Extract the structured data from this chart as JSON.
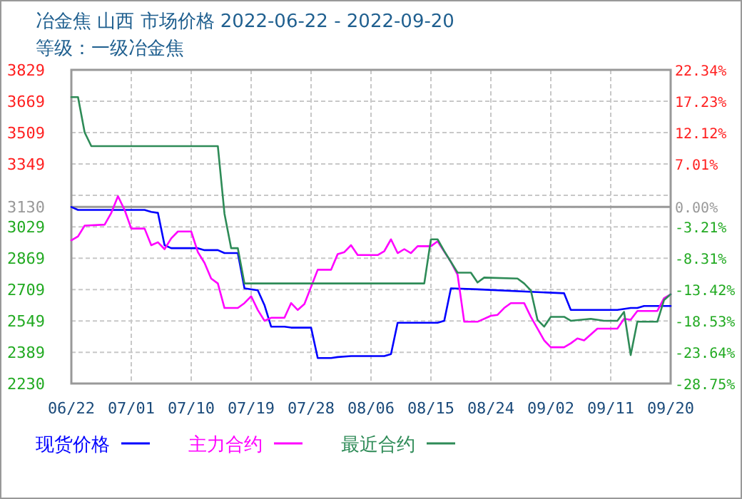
{
  "chart_data": {
    "type": "line",
    "title": "冶金焦 山西 市场价格 2022-06-22 - 2022-09-20",
    "subtitle": "等级：一级冶金焦",
    "xlim": [
      "2022-06-22",
      "2022-09-20"
    ],
    "xticks": [
      {
        "value": "2022-06-22",
        "label": "06/22"
      },
      {
        "value": "2022-07-01",
        "label": "07/01"
      },
      {
        "value": "2022-07-10",
        "label": "07/10"
      },
      {
        "value": "2022-07-19",
        "label": "07/19"
      },
      {
        "value": "2022-07-28",
        "label": "07/28"
      },
      {
        "value": "2022-08-06",
        "label": "08/06"
      },
      {
        "value": "2022-08-15",
        "label": "08/15"
      },
      {
        "value": "2022-08-24",
        "label": "08/24"
      },
      {
        "value": "2022-09-02",
        "label": "09/02"
      },
      {
        "value": "2022-09-11",
        "label": "09/11"
      },
      {
        "value": "2022-09-20",
        "label": "09/20"
      }
    ],
    "ylim": [
      2230,
      3829
    ],
    "yticks": [
      3829,
      3669,
      3509,
      3349,
      {
        "value": 3189,
        "label": null
      },
      3130,
      3029,
      2869,
      2709,
      2549,
      2389,
      2230
    ],
    "y2lim": [
      -28.75,
      22.34
    ],
    "y2ticks": [
      {
        "value": 22.34,
        "label": "22.34%"
      },
      {
        "value": 17.23,
        "label": "17.23%"
      },
      {
        "value": 12.12,
        "label": "12.12%"
      },
      {
        "value": 7.01,
        "label": "7.01%"
      },
      {
        "value": 0,
        "label": "0.00%"
      },
      {
        "value": -3.21,
        "label": "-3.21%"
      },
      {
        "value": -8.31,
        "label": "-8.31%"
      },
      {
        "value": -13.42,
        "label": "-13.42%"
      },
      {
        "value": -18.53,
        "label": "-18.53%"
      },
      {
        "value": -23.64,
        "label": "-23.64%"
      },
      {
        "value": -28.75,
        "label": "-28.75%"
      }
    ],
    "ref_lines": [
      {
        "axis": "y",
        "value": 3130,
        "color": "#999999"
      }
    ],
    "grid": true,
    "legend": "bottom",
    "series": [
      {
        "name": "现货价格",
        "color": "#0000ff",
        "x": [
          "2022-06-22",
          "2022-06-23",
          "2022-07-03",
          "2022-07-04",
          "2022-07-05",
          "2022-07-06",
          "2022-07-07",
          "2022-07-11",
          "2022-07-12",
          "2022-07-14",
          "2022-07-15",
          "2022-07-17",
          "2022-07-18",
          "2022-07-20",
          "2022-07-21",
          "2022-07-22",
          "2022-07-24",
          "2022-07-25",
          "2022-07-28",
          "2022-07-29",
          "2022-07-31",
          "2022-08-01",
          "2022-08-03",
          "2022-08-08",
          "2022-08-09",
          "2022-08-10",
          "2022-08-16",
          "2022-08-17",
          "2022-08-18",
          "2022-08-22",
          "2022-09-04",
          "2022-09-05",
          "2022-09-12",
          "2022-09-14",
          "2022-09-15",
          "2022-09-16",
          "2022-09-20"
        ],
        "values": [
          3130,
          3115,
          3115,
          3105,
          3100,
          2935,
          2920,
          2920,
          2910,
          2910,
          2895,
          2895,
          2715,
          2705,
          2630,
          2520,
          2520,
          2515,
          2515,
          2360,
          2360,
          2365,
          2370,
          2370,
          2380,
          2540,
          2540,
          2550,
          2715,
          2710,
          2690,
          2605,
          2605,
          2615,
          2615,
          2625,
          2625
        ]
      },
      {
        "name": "主力合约",
        "color": "#ff00ff",
        "x": [
          "2022-06-22",
          "2022-06-23",
          "2022-06-24",
          "2022-06-27",
          "2022-06-28",
          "2022-06-29",
          "2022-06-30",
          "2022-07-01",
          "2022-07-03",
          "2022-07-04",
          "2022-07-05",
          "2022-07-06",
          "2022-07-07",
          "2022-07-08",
          "2022-07-10",
          "2022-07-11",
          "2022-07-12",
          "2022-07-13",
          "2022-07-14",
          "2022-07-15",
          "2022-07-17",
          "2022-07-18",
          "2022-07-19",
          "2022-07-20",
          "2022-07-21",
          "2022-07-22",
          "2022-07-24",
          "2022-07-25",
          "2022-07-26",
          "2022-07-27",
          "2022-07-29",
          "2022-07-31",
          "2022-08-01",
          "2022-08-02",
          "2022-08-03",
          "2022-08-04",
          "2022-08-07",
          "2022-08-08",
          "2022-08-09",
          "2022-08-10",
          "2022-08-11",
          "2022-08-12",
          "2022-08-13",
          "2022-08-15",
          "2022-08-16",
          "2022-08-18",
          "2022-08-19",
          "2022-08-20",
          "2022-08-22",
          "2022-08-24",
          "2022-08-25",
          "2022-08-26",
          "2022-08-27",
          "2022-08-29",
          "2022-08-30",
          "2022-09-01",
          "2022-09-02",
          "2022-09-04",
          "2022-09-05",
          "2022-09-06",
          "2022-09-07",
          "2022-09-09",
          "2022-09-12",
          "2022-09-13",
          "2022-09-14",
          "2022-09-15",
          "2022-09-18",
          "2022-09-19",
          "2022-09-20"
        ],
        "values": [
          2960,
          2980,
          3035,
          3040,
          3100,
          3185,
          3115,
          3020,
          3020,
          2935,
          2950,
          2915,
          2970,
          3005,
          3005,
          2900,
          2845,
          2765,
          2740,
          2615,
          2615,
          2640,
          2675,
          2605,
          2550,
          2565,
          2565,
          2640,
          2605,
          2635,
          2810,
          2810,
          2890,
          2900,
          2935,
          2885,
          2885,
          2905,
          2965,
          2895,
          2915,
          2895,
          2930,
          2930,
          2955,
          2850,
          2785,
          2545,
          2545,
          2575,
          2580,
          2615,
          2640,
          2640,
          2570,
          2450,
          2415,
          2415,
          2435,
          2460,
          2450,
          2510,
          2510,
          2560,
          2555,
          2600,
          2600,
          2665,
          2685
        ]
      },
      {
        "name": "最近合约",
        "color": "#2e8b57",
        "x": [
          "2022-06-22",
          "2022-06-23",
          "2022-06-24",
          "2022-06-25",
          "2022-07-14",
          "2022-07-15",
          "2022-07-16",
          "2022-07-17",
          "2022-07-18",
          "2022-08-14",
          "2022-08-15",
          "2022-08-16",
          "2022-08-17",
          "2022-08-19",
          "2022-08-21",
          "2022-08-22",
          "2022-08-23",
          "2022-08-28",
          "2022-08-29",
          "2022-08-30",
          "2022-08-31",
          "2022-09-01",
          "2022-09-02",
          "2022-09-04",
          "2022-09-05",
          "2022-09-08",
          "2022-09-10",
          "2022-09-12",
          "2022-09-13",
          "2022-09-14",
          "2022-09-15",
          "2022-09-18",
          "2022-09-19",
          "2022-09-20"
        ],
        "values": [
          3690,
          3690,
          3510,
          3440,
          3440,
          3095,
          2920,
          2920,
          2740,
          2740,
          2965,
          2965,
          2905,
          2795,
          2795,
          2745,
          2770,
          2765,
          2740,
          2705,
          2555,
          2520,
          2570,
          2570,
          2550,
          2560,
          2550,
          2550,
          2595,
          2375,
          2545,
          2545,
          2655,
          2685
        ]
      }
    ]
  }
}
